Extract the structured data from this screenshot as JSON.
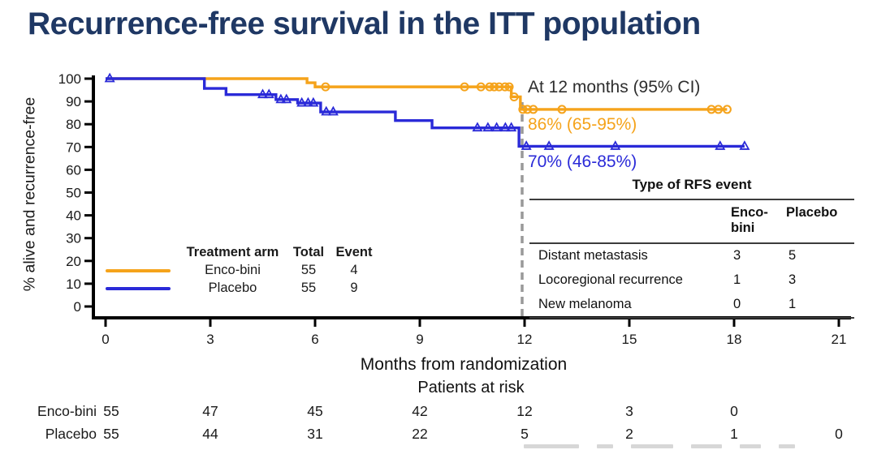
{
  "title": "Recurrence-free survival in the ITT population",
  "colors": {
    "title": "#1F3864",
    "encobini": "#F5A31B",
    "placebo": "#2A2AD8",
    "annotation_text": "#2E2E2E",
    "dashed_line": "#999999",
    "axis": "#000000"
  },
  "annotations": {
    "at12": "At 12 months (95% CI)",
    "encobini_ci": "86% (65-95%)",
    "placebo_ci": "70% (46-85%)"
  },
  "legend": {
    "headers": [
      "Treatment arm",
      "Total",
      "Event"
    ],
    "rows": [
      {
        "arm": "Enco-bini",
        "total": "55",
        "event": "4",
        "color_key": "encobini"
      },
      {
        "arm": "Placebo",
        "total": "55",
        "event": "9",
        "color_key": "placebo"
      }
    ]
  },
  "rfs_table": {
    "title": "Type of RFS event",
    "columns": [
      "Enco-bini",
      "Placebo"
    ],
    "rows": [
      {
        "label": "Distant metastasis",
        "values": [
          "3",
          "5"
        ]
      },
      {
        "label": "Locoregional recurrence",
        "values": [
          "1",
          "3"
        ]
      },
      {
        "label": "New melanoma",
        "values": [
          "0",
          "1"
        ]
      }
    ]
  },
  "chart_data": {
    "type": "line",
    "subtype": "kaplan-meier-step",
    "xlabel": "Months from randomization",
    "ylabel": "% alive and recurrence-free",
    "xlim": [
      0,
      21
    ],
    "ylim": [
      0,
      100
    ],
    "x_ticks": [
      0,
      3,
      6,
      9,
      12,
      15,
      18,
      21
    ],
    "y_ticks": [
      0,
      10,
      20,
      30,
      40,
      50,
      60,
      70,
      80,
      90,
      100
    ],
    "grid": false,
    "dashed_reference_month": 12,
    "series": [
      {
        "name": "Enco-bini",
        "color_key": "encobini",
        "marker": "circle",
        "estimate_at_12_months": "86% (65-95%)",
        "steps": [
          [
            0,
            100
          ],
          [
            5.77,
            100
          ],
          [
            5.77,
            98.2
          ],
          [
            6.0,
            98.2
          ],
          [
            6.0,
            96.4
          ],
          [
            11.62,
            96.4
          ],
          [
            11.62,
            92.0
          ],
          [
            11.88,
            92.0
          ],
          [
            11.88,
            86.5
          ],
          [
            17.8,
            86.5
          ]
        ],
        "censors": [
          [
            6.3,
            96.4
          ],
          [
            10.28,
            96.4
          ],
          [
            10.75,
            96.4
          ],
          [
            11.0,
            96.4
          ],
          [
            11.13,
            96.4
          ],
          [
            11.27,
            96.4
          ],
          [
            11.44,
            96.4
          ],
          [
            11.56,
            96.4
          ],
          [
            11.7,
            92.0
          ],
          [
            11.95,
            86.5
          ],
          [
            12.08,
            86.5
          ],
          [
            12.25,
            86.5
          ],
          [
            13.07,
            86.5
          ],
          [
            17.35,
            86.5
          ],
          [
            17.55,
            86.5
          ],
          [
            17.8,
            86.5
          ]
        ]
      },
      {
        "name": "Placebo",
        "color_key": "placebo",
        "marker": "triangle",
        "estimate_at_12_months": "70% (46-85%)",
        "steps": [
          [
            0,
            100
          ],
          [
            2.83,
            100
          ],
          [
            2.83,
            95.7
          ],
          [
            3.45,
            95.7
          ],
          [
            3.45,
            93.0
          ],
          [
            4.88,
            93.0
          ],
          [
            4.88,
            90.8
          ],
          [
            5.5,
            90.8
          ],
          [
            5.5,
            89.3
          ],
          [
            6.16,
            89.3
          ],
          [
            6.16,
            85.4
          ],
          [
            8.3,
            85.4
          ],
          [
            8.3,
            81.6
          ],
          [
            9.35,
            81.6
          ],
          [
            9.35,
            78.4
          ],
          [
            11.84,
            78.4
          ],
          [
            11.84,
            70.3
          ],
          [
            18.3,
            70.3
          ]
        ],
        "censors": [
          [
            0.12,
            100
          ],
          [
            4.5,
            93.0
          ],
          [
            4.68,
            93.0
          ],
          [
            5.02,
            90.8
          ],
          [
            5.18,
            90.8
          ],
          [
            5.62,
            89.3
          ],
          [
            5.8,
            89.3
          ],
          [
            5.95,
            89.3
          ],
          [
            6.32,
            85.4
          ],
          [
            6.52,
            85.4
          ],
          [
            10.65,
            78.4
          ],
          [
            10.95,
            78.4
          ],
          [
            11.2,
            78.4
          ],
          [
            11.45,
            78.4
          ],
          [
            11.62,
            78.4
          ],
          [
            12.05,
            70.3
          ],
          [
            12.7,
            70.3
          ],
          [
            14.6,
            70.3
          ],
          [
            17.6,
            70.3
          ],
          [
            18.3,
            70.3
          ]
        ]
      }
    ]
  },
  "risk_table": {
    "caption": "Patients at risk",
    "rows": [
      {
        "label": "Enco-bini",
        "values": [
          [
            0,
            "55"
          ],
          [
            3,
            "47"
          ],
          [
            6,
            "45"
          ],
          [
            9,
            "42"
          ],
          [
            12,
            "12"
          ],
          [
            15,
            "3"
          ],
          [
            18,
            "0"
          ]
        ]
      },
      {
        "label": "Placebo",
        "values": [
          [
            0,
            "55"
          ],
          [
            3,
            "44"
          ],
          [
            6,
            "31"
          ],
          [
            9,
            "22"
          ],
          [
            12,
            "5"
          ],
          [
            15,
            "2"
          ],
          [
            18,
            "1"
          ],
          [
            21,
            "0"
          ]
        ]
      }
    ]
  }
}
